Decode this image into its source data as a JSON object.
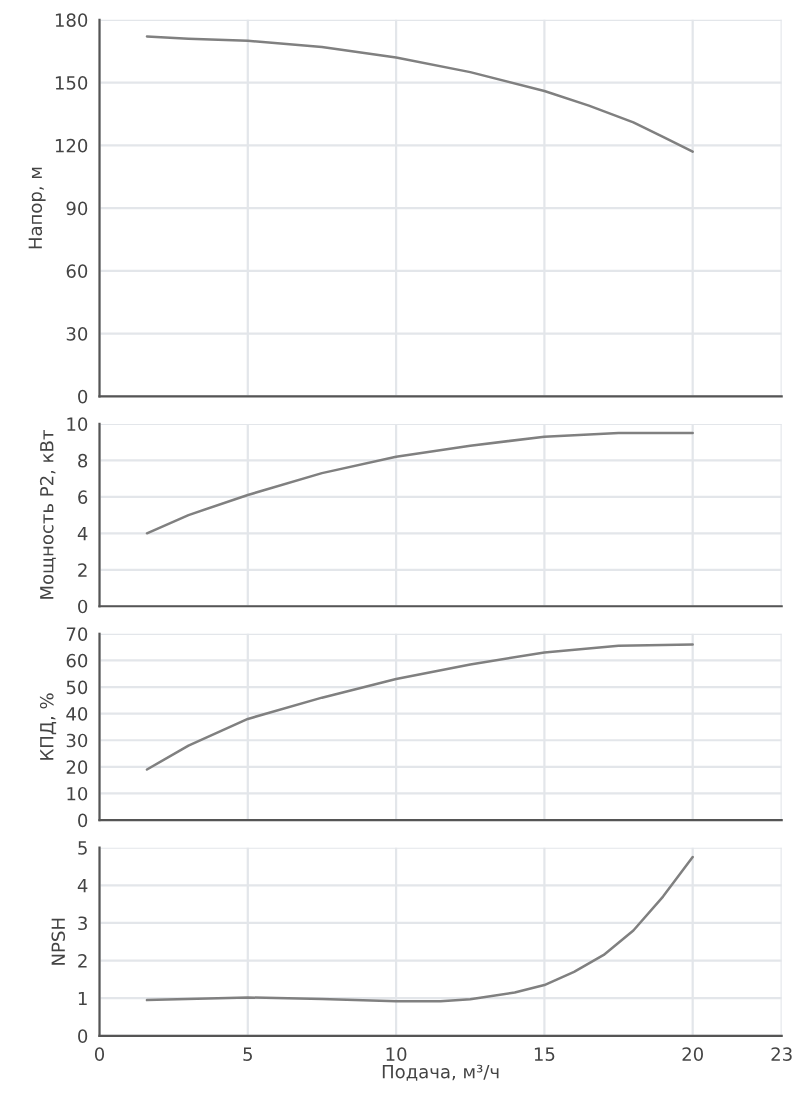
{
  "chart_data": [
    {
      "type": "line",
      "ylabel": "Напор, м",
      "xlim": [
        0,
        23
      ],
      "xticks": [
        0,
        5,
        10,
        15,
        20,
        23
      ],
      "ylim": [
        0,
        180
      ],
      "yticks": [
        0,
        30,
        60,
        90,
        120,
        150,
        180
      ],
      "grid": true,
      "tick_labels": "y",
      "marker": "none",
      "series": [
        {
          "color": "#808080",
          "x": [
            1.6,
            3,
            5,
            7.5,
            10,
            12.5,
            15,
            16.5,
            18,
            19,
            20
          ],
          "values": [
            172,
            171,
            170,
            167,
            162,
            155,
            146,
            139,
            131,
            124,
            117
          ]
        }
      ]
    },
    {
      "type": "line",
      "ylabel": "Мощность P2, кВт",
      "xlim": [
        0,
        23
      ],
      "xticks": [
        0,
        5,
        10,
        15,
        20,
        23
      ],
      "ylim": [
        0,
        10
      ],
      "yticks": [
        0,
        2,
        4,
        6,
        8,
        10
      ],
      "grid": true,
      "tick_labels": "y",
      "marker": "none",
      "series": [
        {
          "color": "#808080",
          "x": [
            1.6,
            3,
            5,
            7.5,
            10,
            12.5,
            15,
            17.5,
            20
          ],
          "values": [
            4.0,
            5.0,
            6.1,
            7.3,
            8.2,
            8.8,
            9.3,
            9.5,
            9.5
          ]
        }
      ]
    },
    {
      "type": "line",
      "ylabel": "КПД, %",
      "xlim": [
        0,
        23
      ],
      "xticks": [
        0,
        5,
        10,
        15,
        20,
        23
      ],
      "ylim": [
        0,
        70
      ],
      "yticks": [
        0,
        10,
        20,
        30,
        40,
        50,
        60,
        70
      ],
      "grid": true,
      "tick_labels": "y",
      "marker": "none",
      "series": [
        {
          "color": "#808080",
          "x": [
            1.6,
            3,
            5,
            7.5,
            10,
            12.5,
            15,
            17.5,
            20
          ],
          "values": [
            19,
            28,
            38,
            46,
            53,
            58.5,
            63,
            65.5,
            66
          ]
        }
      ]
    },
    {
      "type": "line",
      "ylabel": "NPSH",
      "xlabel": "Подача, м³/ч",
      "xlim": [
        0,
        23
      ],
      "xticks": [
        0,
        5,
        10,
        15,
        20,
        23
      ],
      "ylim": [
        0,
        5
      ],
      "yticks": [
        0,
        1,
        2,
        3,
        4,
        5
      ],
      "grid": true,
      "marker": "none",
      "series": [
        {
          "color": "#808080",
          "x": [
            1.6,
            5,
            7.5,
            10,
            11.5,
            12.5,
            14,
            15,
            16,
            17,
            18,
            19,
            20
          ],
          "values": [
            0.95,
            1.02,
            0.98,
            0.92,
            0.92,
            0.97,
            1.15,
            1.35,
            1.7,
            2.15,
            2.8,
            3.7,
            4.75
          ]
        }
      ]
    }
  ]
}
